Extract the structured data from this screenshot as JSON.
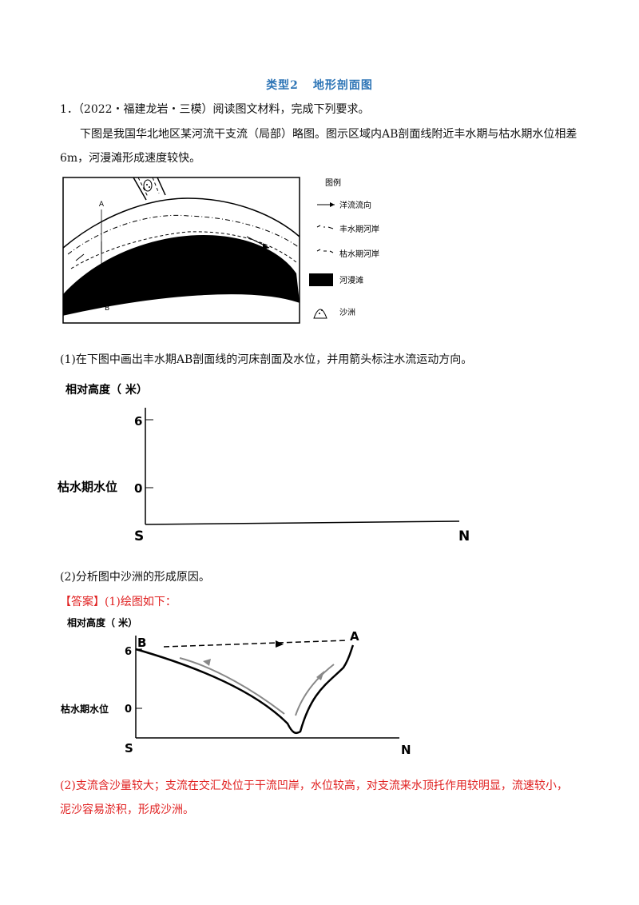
{
  "section_title": {
    "type": "类型2",
    "name": "地形剖面图"
  },
  "question": {
    "number": "1．",
    "source": "（2022・福建龙岩・三模）阅读图文材料，完成下列要求。",
    "material_line1": "下图是我国华北地区某河流干支流（局部）略图。图示区域内AB剖面线附近丰水期与枯水期水位相差",
    "material_line2": "6m，河漫滩形成速度较快。"
  },
  "map": {
    "point_a": "A",
    "point_b": "B",
    "legend_title": "图例",
    "legend_items": [
      {
        "icon": "arrow-icon",
        "label": "洋流流向"
      },
      {
        "icon": "dash-dot-line-icon",
        "label": "丰水期河岸"
      },
      {
        "icon": "dashed-line-icon",
        "label": "枯水期河岸"
      },
      {
        "icon": "black-fill-icon",
        "label": "河漫滩"
      },
      {
        "icon": "sandbar-icon",
        "label": "沙洲"
      }
    ]
  },
  "q1": "(1)在下图中画出丰水期AB剖面线的河床剖面及水位，并用箭头标注水流运动方向。",
  "blank_chart": {
    "ylabel": "相对高度（ 米）",
    "tick6": "6",
    "tick0": "0",
    "dry_level": "枯水期水位",
    "x_left": "S",
    "x_right": "N"
  },
  "q2": "(2)分析图中沙洲的形成原因。",
  "answer": {
    "tag": "【答案】",
    "a1": "(1)绘图如下：",
    "chart": {
      "ylabel": "相对高度（ 米）",
      "tick6": "6",
      "tick0": "0",
      "dry_level": "枯水期水位",
      "x_left": "S",
      "x_right": "N",
      "point_b": "B",
      "point_a": "A"
    },
    "a2_line1": "(2)支流含沙量较大；支流在交汇处位于干流凹岸，水位较高，对支流来水顶托作用较明显，流速较小，",
    "a2_line2": "泥沙容易淤积，形成沙洲。"
  }
}
